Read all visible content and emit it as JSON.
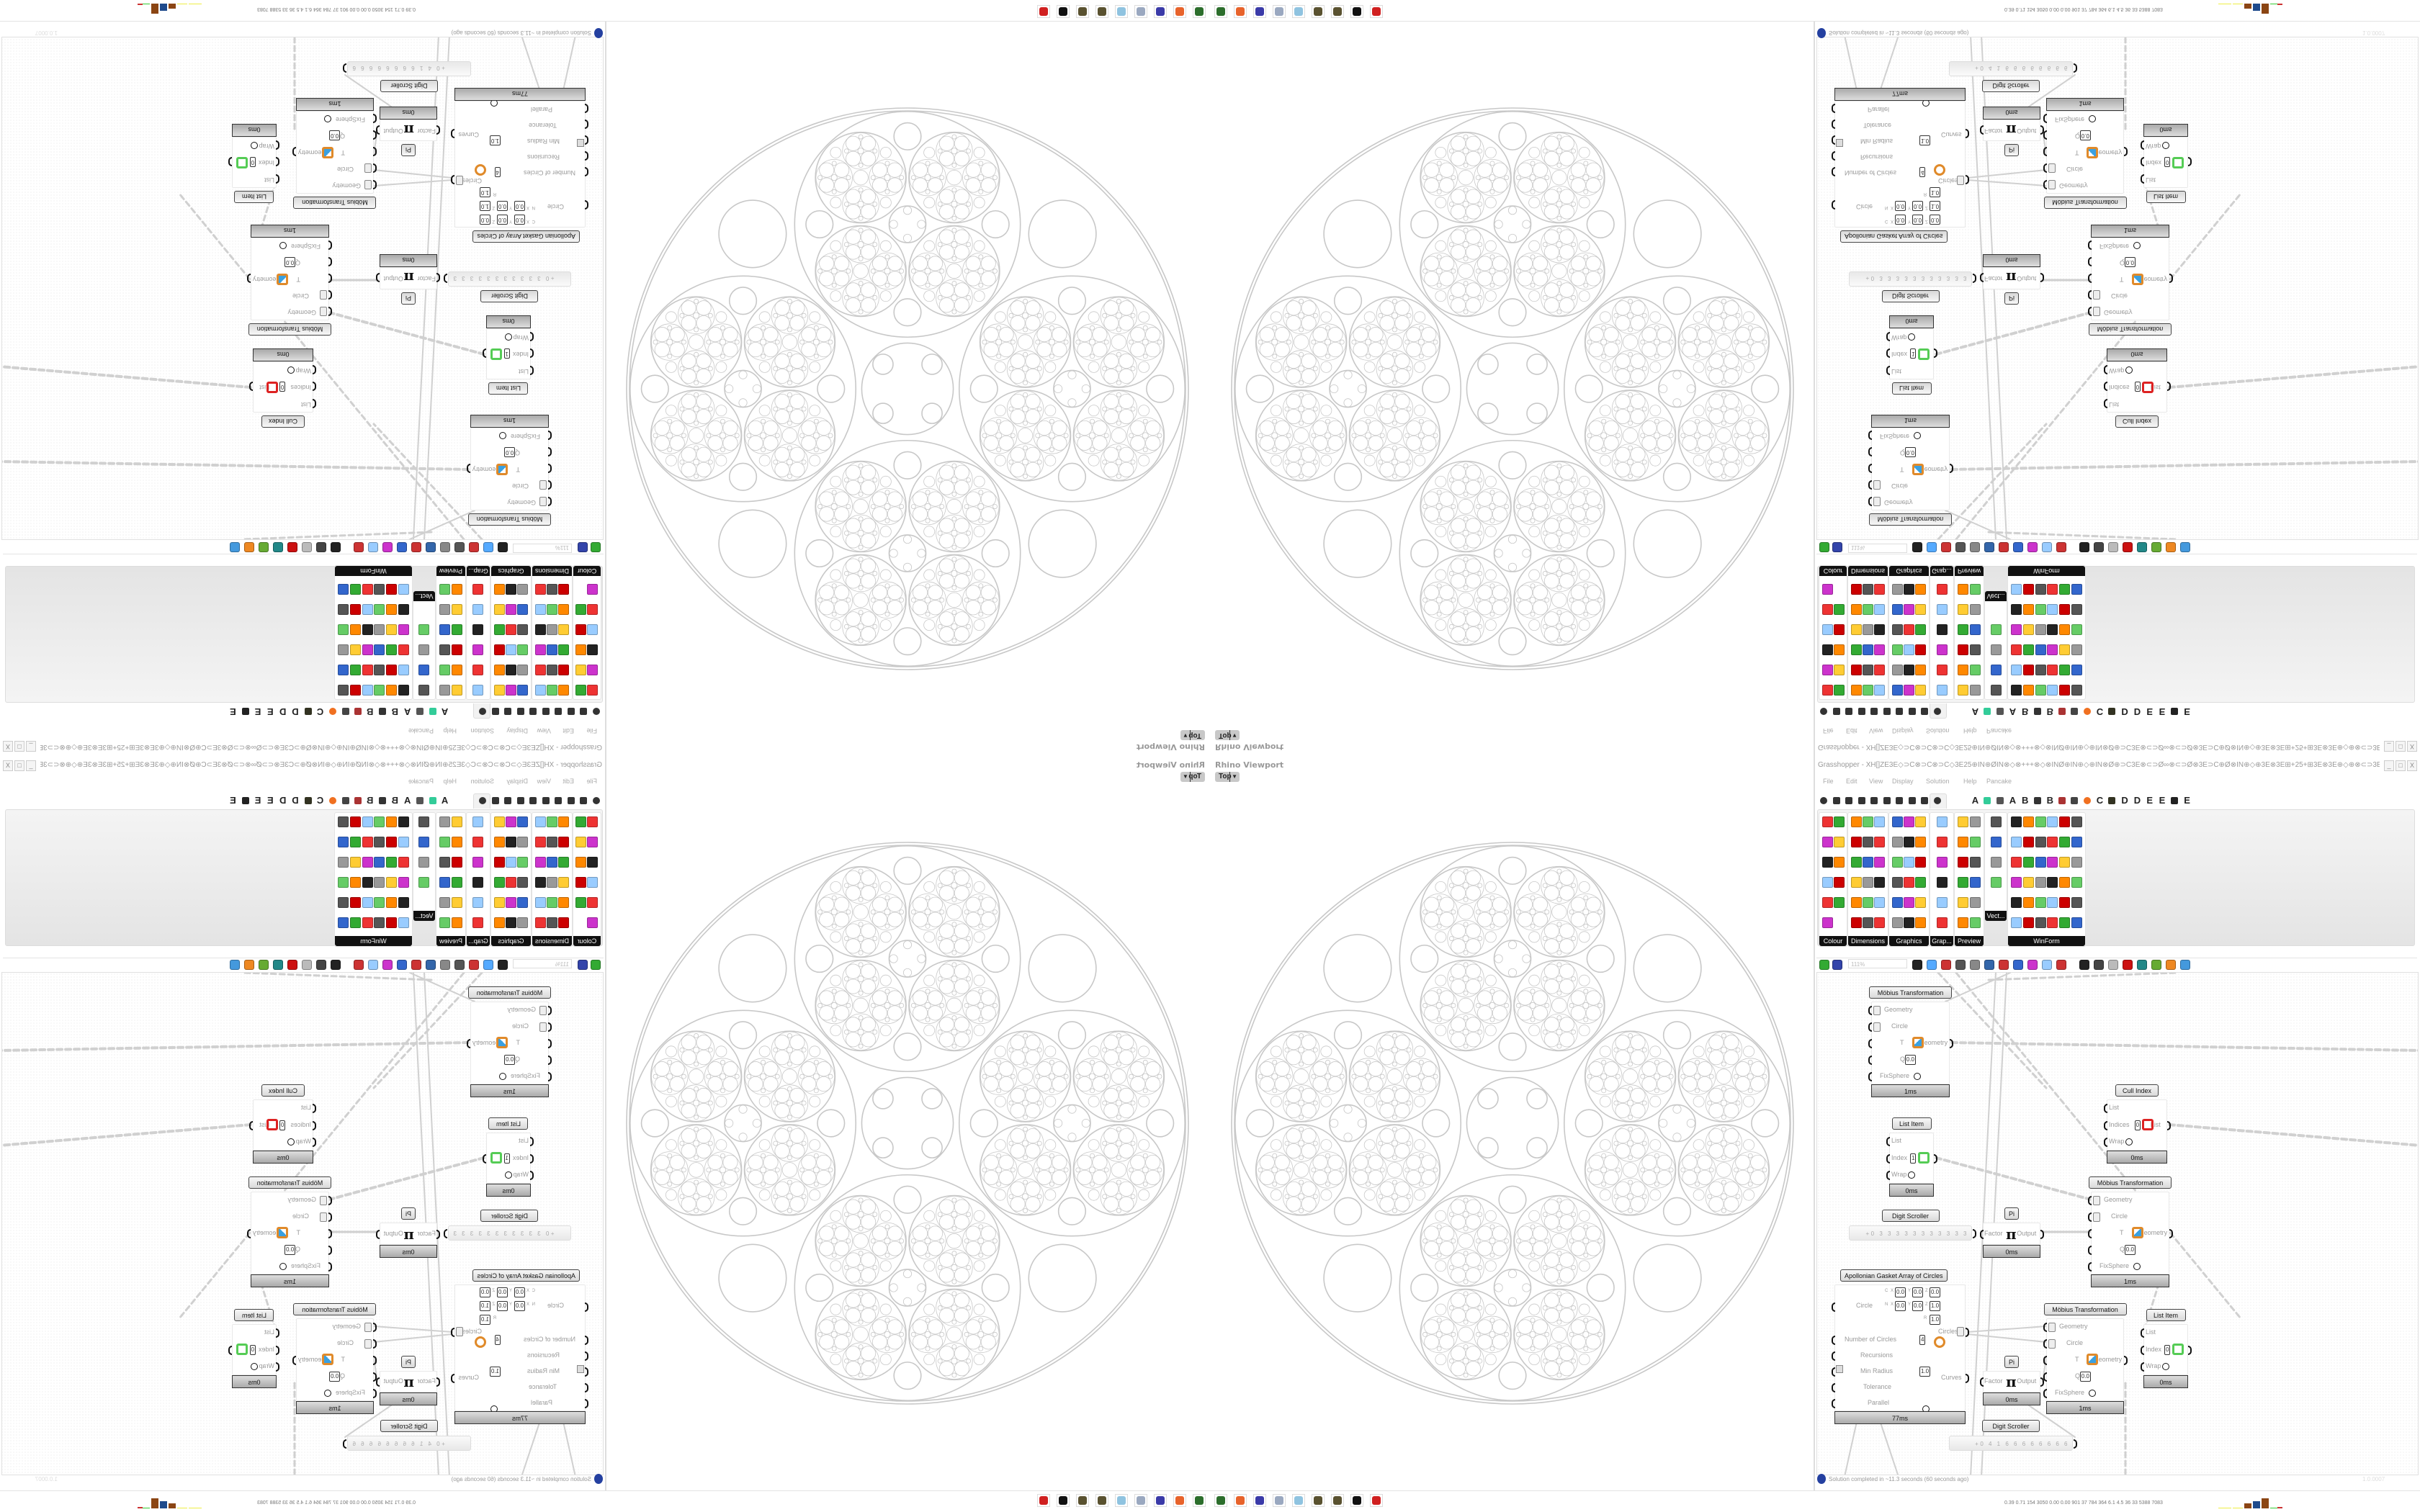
{
  "colors": {
    "accent_tab_bg": "#111111",
    "canvas_bg": "#ffffff",
    "wire": "#d0d0d0",
    "status_icon": "#2440a0",
    "fractal_stroke": "#c8c8c8"
  },
  "viewport": {
    "label": "Rhino Viewport",
    "view": "Top",
    "view_dropdown_icon": "chevron-down-icon"
  },
  "gh": {
    "title": "Grasshopper - XH[]ZE3E◇⊃C⊗⊃C⊗⊃C◇3E25⊕IN⊕ØIN⊗◇⊗+++⊗◇⊗INØ⊕IN⊕◇⊕IN⊗Ø⊕⊃C3E⊗⊂⊃Ø∞⊗⊂⊃Ø⊗3E⊃C⊕Ø⊗IN⊕◇⊕3E⊗3E⊞+25+⊞3E⊗3E⊕◇⊕⊗⊂⊃3E⊞⊕⊕⊃C...",
    "window_buttons": [
      "_",
      "□",
      "X"
    ],
    "menu": [
      "File",
      "Edit",
      "View",
      "Display",
      "Solution",
      "Help",
      "Pancake"
    ],
    "tab_row": [
      {
        "icon": "hexagon-icon"
      },
      {
        "icon": "sigma-icon"
      },
      {
        "icon": "y-branch-icon"
      },
      {
        "icon": "arrow-icon"
      },
      {
        "icon": "hook-icon"
      },
      {
        "icon": "surface-icon"
      },
      {
        "icon": "flag-icon"
      },
      {
        "icon": "scissors-icon"
      },
      {
        "icon": "spiral-icon"
      },
      {
        "icon": "eye-icon",
        "selected": true
      },
      {
        "label": "A"
      },
      {
        "icon": "green-crystal-icon"
      },
      {
        "icon": "gear-skull-icon"
      },
      {
        "label": "A"
      },
      {
        "label": "B"
      },
      {
        "icon": "mountain-icon"
      },
      {
        "label": "B"
      },
      {
        "icon": "shield-icon"
      },
      {
        "icon": "grid-icon"
      },
      {
        "icon": "orange-circle-icon"
      },
      {
        "label": "C"
      },
      {
        "icon": "chicken-icon"
      },
      {
        "label": "D"
      },
      {
        "label": "D"
      },
      {
        "label": "E"
      },
      {
        "label": "E"
      },
      {
        "icon": "dotted-square-icon"
      },
      {
        "label": "E"
      }
    ],
    "panels": [
      {
        "label": "Colour"
      },
      {
        "label": "Dimensions"
      },
      {
        "label": "Graphics"
      },
      {
        "label": "Grap..."
      },
      {
        "label": "Preview"
      },
      {
        "label": "Vect..."
      },
      {
        "label": "WinForm"
      }
    ],
    "canvas_toolbar": {
      "zoom": "111%"
    },
    "components": {
      "mob1": {
        "title": "Möbius Transformation",
        "inputs": [
          {
            "label": "Geometry"
          },
          {
            "label": "Circle"
          },
          {
            "label": "T"
          },
          {
            "label": "Q",
            "value": "0.0"
          },
          {
            "label": "FixSphere"
          }
        ],
        "outputs": [
          {
            "label": "Geometry"
          }
        ],
        "time": "1ms"
      },
      "mob2": {
        "title": "Möbius Transformation",
        "inputs": [
          {
            "label": "Geometry"
          },
          {
            "label": "Circle"
          },
          {
            "label": "T"
          },
          {
            "label": "Q",
            "value": "0.0"
          },
          {
            "label": "FixSphere"
          }
        ],
        "outputs": [
          {
            "label": "Geometry"
          }
        ],
        "time": "1ms"
      },
      "mob3": {
        "title": "Möbius Transformation",
        "inputs": [
          {
            "label": "Geometry"
          },
          {
            "label": "Circle"
          },
          {
            "label": "T"
          },
          {
            "label": "Q",
            "value": "0.0"
          },
          {
            "label": "FixSphere"
          }
        ],
        "outputs": [
          {
            "label": "Geometry"
          }
        ],
        "time": "1ms"
      },
      "li1": {
        "title": "List Item",
        "inputs": [
          {
            "label": "List"
          },
          {
            "label": "Index",
            "value": "1"
          },
          {
            "label": "Wrap"
          }
        ],
        "outputs": [
          {
            "label": "i"
          }
        ],
        "time": "0ms"
      },
      "li2": {
        "title": "List Item",
        "inputs": [
          {
            "label": "List"
          },
          {
            "label": "Index",
            "value": "0"
          },
          {
            "label": "Wrap"
          }
        ],
        "outputs": [
          {
            "label": "i"
          }
        ],
        "time": "0ms"
      },
      "cull": {
        "title": "Cull Index",
        "inputs": [
          {
            "label": "List"
          },
          {
            "label": "Indices",
            "value": "0"
          },
          {
            "label": "Wrap"
          }
        ],
        "outputs": [
          {
            "label": "List"
          }
        ],
        "time": "0ms"
      },
      "pi1": {
        "title": "Pi",
        "inputs": [
          {
            "label": "Factor"
          }
        ],
        "outputs": [
          {
            "label": "Output"
          }
        ],
        "time": "0ms"
      },
      "pi2": {
        "title": "Pi",
        "inputs": [
          {
            "label": "Factor"
          }
        ],
        "outputs": [
          {
            "label": "Output"
          }
        ],
        "time": "0ms"
      },
      "ds1": {
        "title": "Digit Scroller",
        "value": "+0 3 3 3 3 3 3 3 3 3 3 3"
      },
      "ds2": {
        "title": "Digit Scroller",
        "value": "+0 4 1 6 6 6 6 6 6 6 6"
      },
      "apo": {
        "title": "Apollonian Gasket Array of Circles",
        "circle": {
          "label": "Circle",
          "c_label": "C",
          "n_label": "N",
          "r_label": "R",
          "c": {
            "x": "0.0",
            "y": "0.0",
            "z": "0.0"
          },
          "n": {
            "x": "0.0",
            "y": "0.0",
            "z": "1.0"
          },
          "r": "1.0"
        },
        "inputs": [
          {
            "label": "Number of Circles",
            "value": "4"
          },
          {
            "label": "Recursions"
          },
          {
            "label": "Min Radius",
            "value": "1.0"
          },
          {
            "label": "Tolerance"
          },
          {
            "label": "Parallel"
          }
        ],
        "outputs": [
          {
            "label": "Circles"
          },
          {
            "label": "Curves"
          }
        ],
        "time": "77ms"
      }
    },
    "status": "Solution completed in ~11.3 seconds (60 seconds ago)",
    "version": "1.0.0007"
  },
  "taskbar": {
    "icons": [
      {
        "name": "monitor-app-icon",
        "color": "#2c6e2c"
      },
      {
        "name": "firefox-icon",
        "color": "#e8632b"
      },
      {
        "name": "floppy-64-icon",
        "color": "#3a3aa8"
      },
      {
        "name": "scroll-icon",
        "color": "#9aa8c0"
      },
      {
        "name": "notepad-icon",
        "color": "#8fc3e0"
      },
      {
        "name": "coin-icon",
        "color": "#5a5230"
      },
      {
        "name": "coin-icon",
        "color": "#5a5230"
      },
      {
        "name": "wolf-icon",
        "color": "#111111"
      },
      {
        "name": "red-badge-icon",
        "color": "#d02020"
      }
    ],
    "stats": "0.39 0.71 154 3050 0.00 0.00 901 37 784 364 6.1 4.5 36 33 5388 7083"
  }
}
